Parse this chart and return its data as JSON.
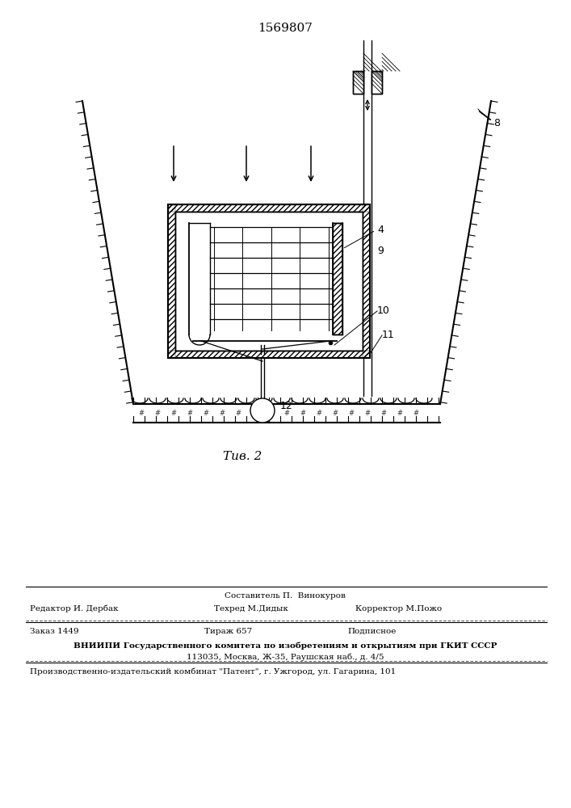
{
  "patent_number": "1569807",
  "fig_label": "Τив. 2",
  "bg_color": "#ffffff",
  "lc": "#000000",
  "footer": {
    "sostavitel": "Составитель П.  Винокуров",
    "redaktor": "Редактор И. Дербак",
    "tehred": "Техред М.Дидык",
    "korrektor": "Корректор М.Пожо",
    "zakaz": "Заказ 1449",
    "tirazh": "Тираж 657",
    "podpisnoe": "Подписное",
    "vniipи": "ВНИИПИ Государственного комитета по изобретениям и открытиям при ГКИТ СССР",
    "address": "113035, Москва, Ж-35, Раушская наб., д. 4/5",
    "kombinat": "Производственно-издательский комбинат \"Патент\", г. Ужгород, ул. Гагарина, 101"
  }
}
